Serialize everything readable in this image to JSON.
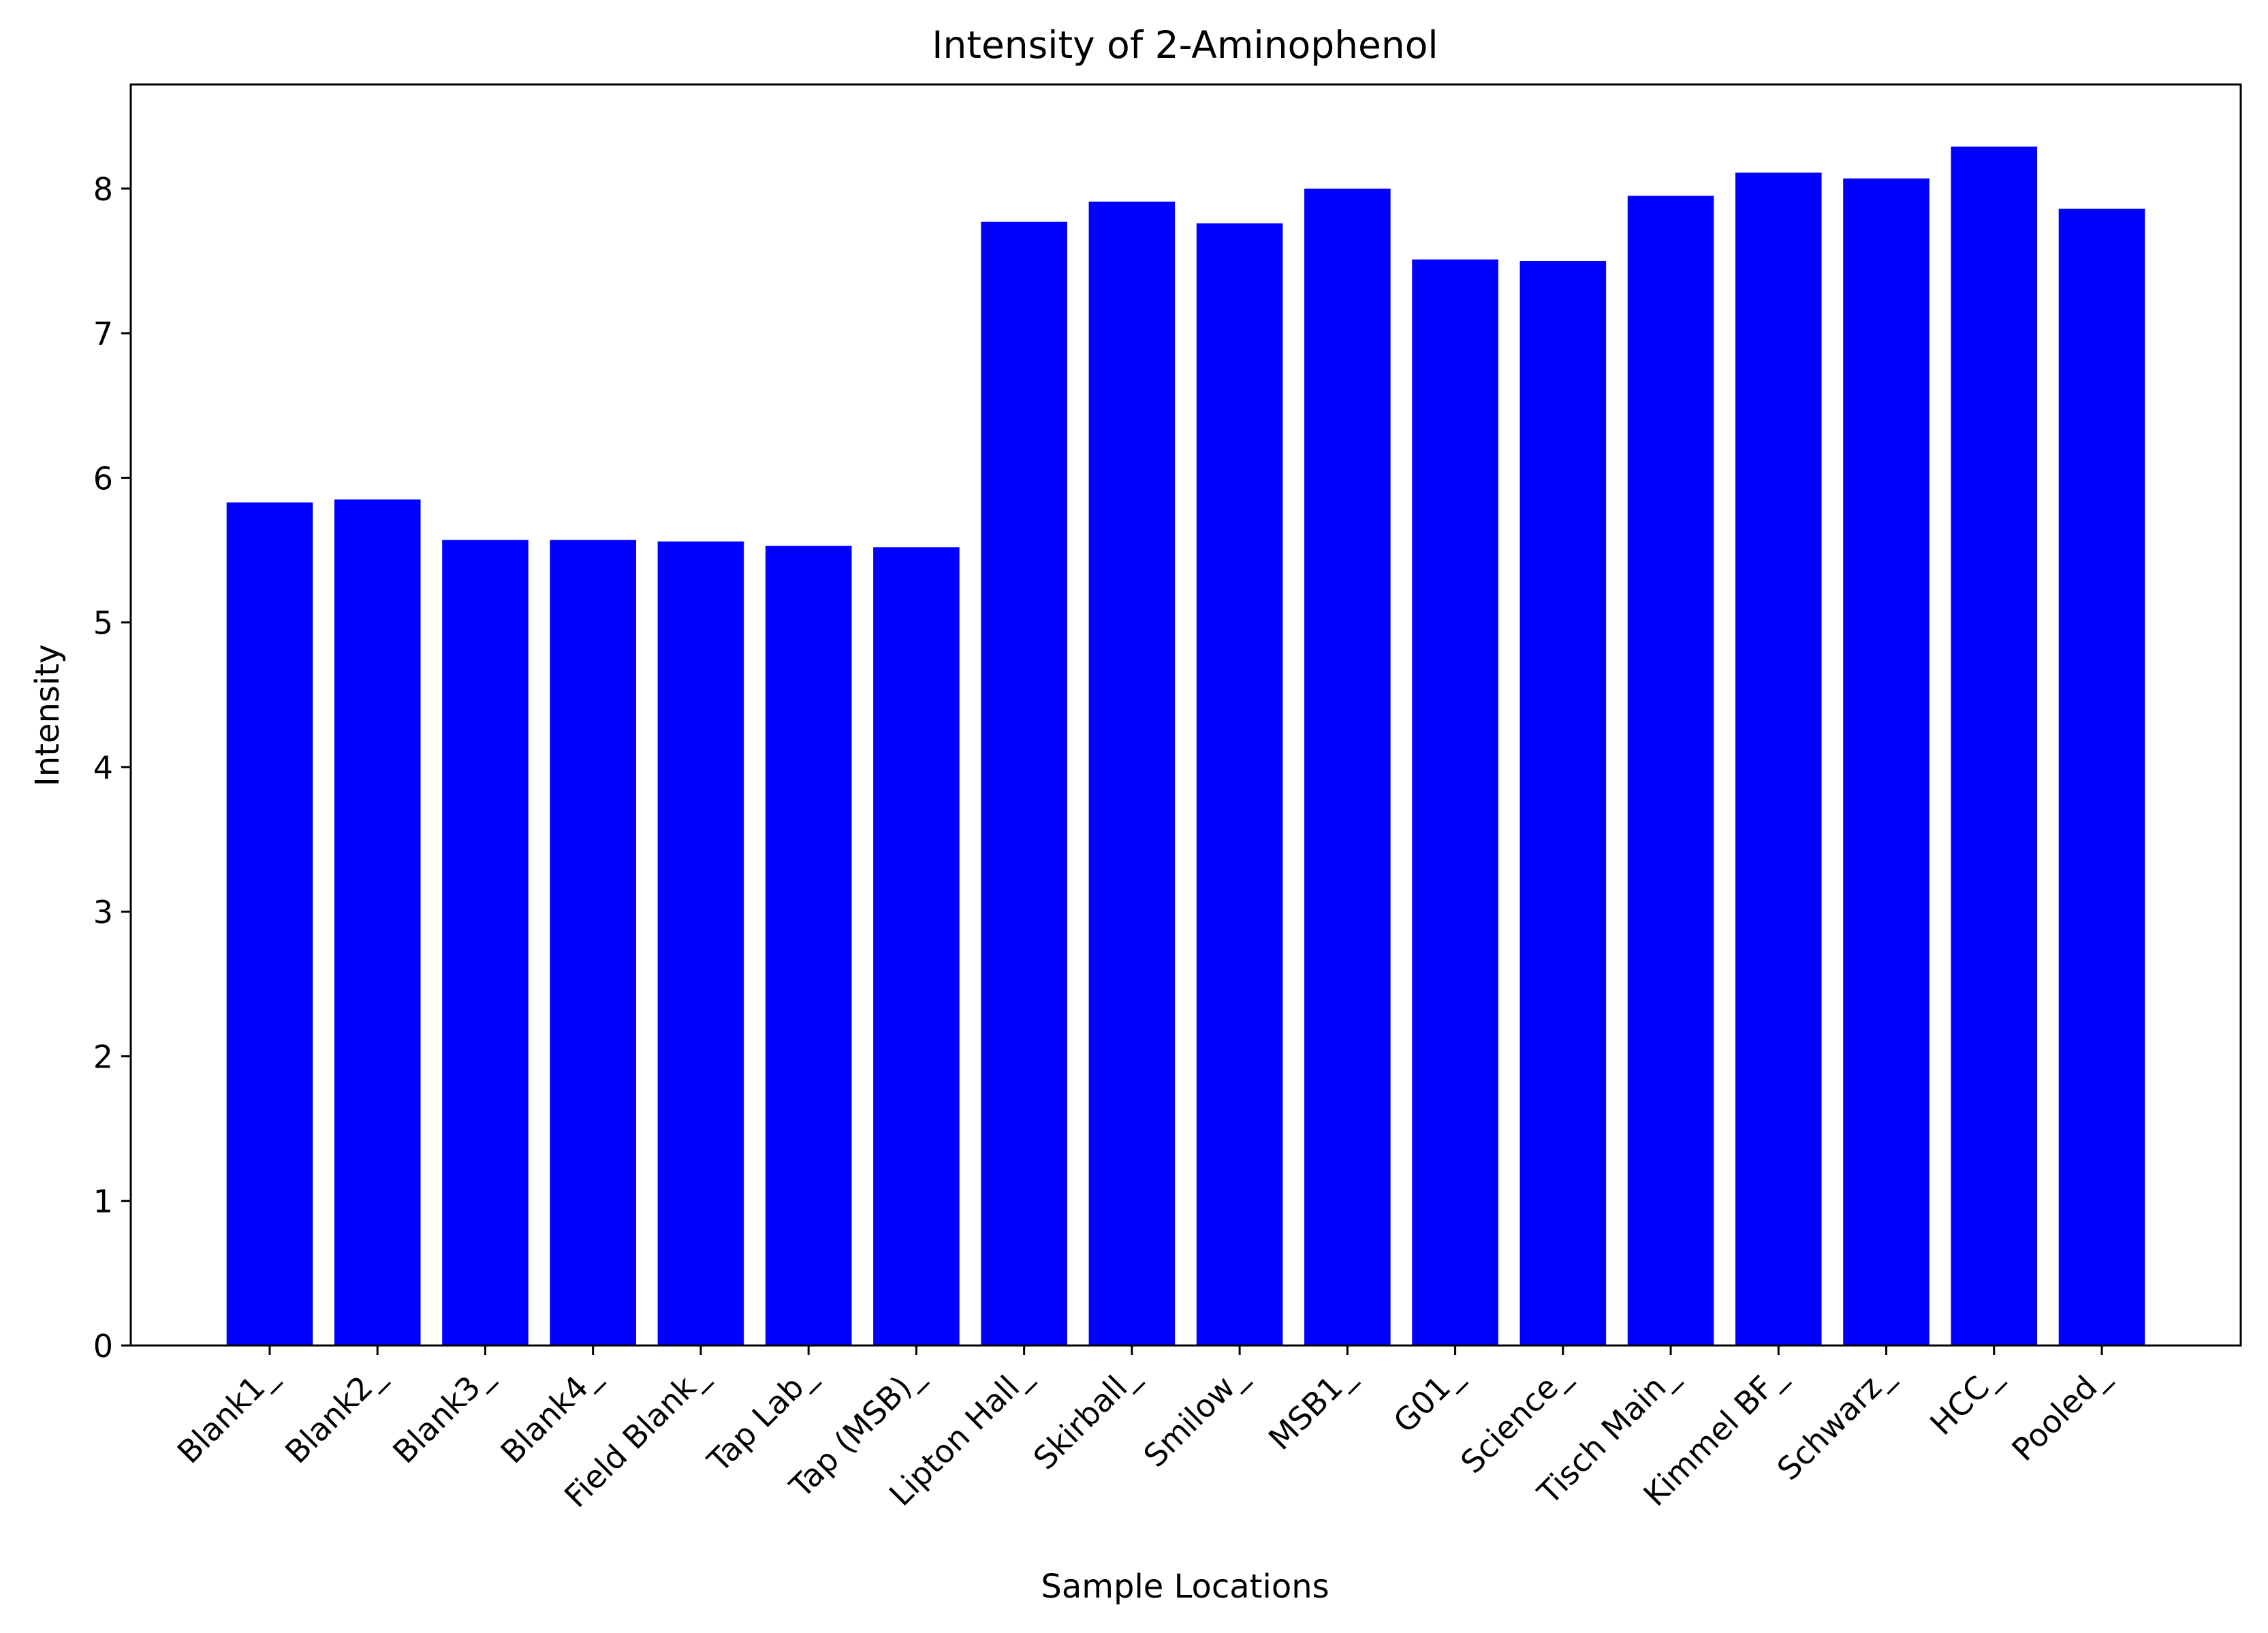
{
  "chart_data": {
    "type": "bar",
    "title": "Intensity of 2-Aminophenol",
    "xlabel": "Sample Locations",
    "ylabel": "Intensity",
    "ylim": [
      0,
      8.72
    ],
    "yticks": [
      0,
      1,
      2,
      3,
      4,
      5,
      6,
      7,
      8
    ],
    "grid": false,
    "bar_color": "#0000ff",
    "categories": [
      "Blank1_",
      "Blank2_",
      "Blank3_",
      "Blank4_",
      "Field Blank_",
      "Tap Lab_",
      "Tap (MSB)_",
      "Lipton Hall_",
      "Skirball_",
      "Smilow_",
      "MSB1_",
      "G01_",
      "Science_",
      "Tisch Main_",
      "Kimmel BF_",
      "Schwarz_",
      "HCC_",
      "Pooled_"
    ],
    "values": [
      5.83,
      5.85,
      5.57,
      5.57,
      5.56,
      5.53,
      5.52,
      7.77,
      7.91,
      7.76,
      8.0,
      7.51,
      7.5,
      7.95,
      8.11,
      8.07,
      8.29,
      7.86
    ]
  }
}
